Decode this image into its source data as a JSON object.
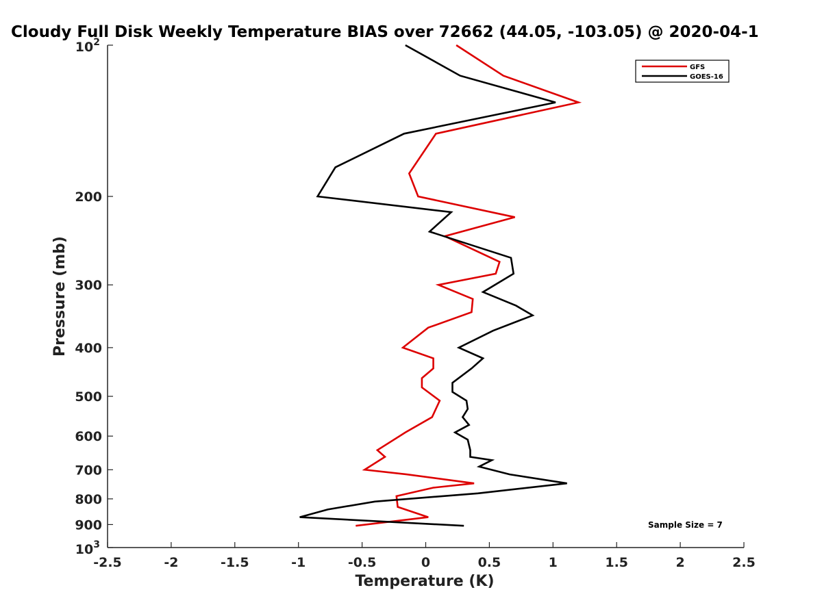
{
  "chart_data": {
    "type": "line",
    "title": "Cloudy Full Disk Weekly Temperature BIAS over 72662 (44.05, -103.05) @ 2020-04-1",
    "xlabel": "Temperature (K)",
    "ylabel": "Pressure (mb)",
    "xlim": [
      -2.5,
      2.5
    ],
    "ylim": [
      100,
      1000
    ],
    "y_scale": "log",
    "y_direction": "reversed",
    "x_ticks": [
      -2.5,
      -2,
      -1.5,
      -1,
      -0.5,
      0,
      0.5,
      1,
      1.5,
      2,
      2.5
    ],
    "x_tick_labels": [
      "-2.5",
      "-2",
      "-1.5",
      "-1",
      "-0.5",
      "0",
      "0.5",
      "1",
      "1.5",
      "2",
      "2.5"
    ],
    "y_ticks": [
      200,
      300,
      400,
      500,
      600,
      700,
      800,
      900
    ],
    "y_tick_labels": [
      "200",
      "300",
      "400",
      "500",
      "600",
      "700",
      "800",
      "900"
    ],
    "y_pow_ticks": [
      {
        "value": 100,
        "base": "10",
        "exp": "2"
      },
      {
        "value": 1000,
        "base": "10",
        "exp": "3"
      }
    ],
    "grid": false,
    "legend_position": "top-right",
    "annotation": "Sample Size = 7",
    "series": [
      {
        "name": "GFS",
        "color": "#dd0000",
        "x": [
          0.24,
          0.61,
          1.2,
          0.08,
          -0.13,
          -0.06,
          0.7,
          0.15,
          0.58,
          0.55,
          0.1,
          0.37,
          0.36,
          0.02,
          -0.18,
          0.06,
          0.06,
          -0.03,
          -0.03,
          0.11,
          0.05,
          -0.16,
          -0.38,
          -0.32,
          -0.48,
          -0.15,
          0.38,
          0.06,
          -0.23,
          -0.22,
          0.02,
          -0.55
        ],
        "y": [
          100,
          115,
          130,
          150,
          180,
          200,
          220,
          240,
          270,
          285,
          300,
          320,
          340,
          365,
          400,
          420,
          440,
          460,
          480,
          510,
          550,
          590,
          640,
          660,
          700,
          715,
          745,
          760,
          790,
          830,
          870,
          905
        ]
      },
      {
        "name": "GOES-16",
        "color": "#000000",
        "x": [
          -0.16,
          0.27,
          1.02,
          -0.17,
          -0.71,
          -0.85,
          0.2,
          0.03,
          0.67,
          0.69,
          0.45,
          0.71,
          0.84,
          0.53,
          0.26,
          0.45,
          0.36,
          0.21,
          0.21,
          0.32,
          0.33,
          0.29,
          0.34,
          0.23,
          0.33,
          0.35,
          0.35,
          0.52,
          0.42,
          0.66,
          1.11,
          0.41,
          -0.4,
          -0.77,
          -0.99,
          0.3
        ],
        "y": [
          100,
          115,
          130,
          150,
          175,
          200,
          215,
          235,
          265,
          285,
          310,
          330,
          345,
          370,
          400,
          420,
          440,
          470,
          490,
          510,
          530,
          550,
          570,
          590,
          610,
          640,
          660,
          670,
          690,
          715,
          745,
          780,
          810,
          840,
          870,
          905
        ]
      }
    ]
  }
}
